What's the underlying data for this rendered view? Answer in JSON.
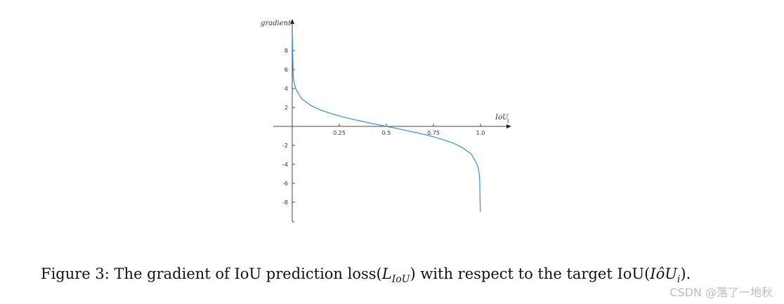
{
  "chart_data": {
    "type": "line",
    "xlabel": "IoU",
    "xlabel_subscript": "i",
    "ylabel": "gradient",
    "xlim": [
      0,
      1.0
    ],
    "ylim": [
      -9,
      9
    ],
    "xticks": [
      0.25,
      0.5,
      0.75,
      1.0
    ],
    "xtick_labels": [
      "0.25",
      "0.5",
      "0.75",
      "1.0"
    ],
    "yticks": [
      8,
      6,
      4,
      2,
      -2,
      -4,
      -6,
      -8
    ],
    "ytick_labels": [
      "8",
      "6",
      "4",
      "2",
      "-2",
      "-4",
      "-6",
      "-8"
    ],
    "grid": false,
    "series": [
      {
        "color": "#3a8fd0",
        "x": [
          0.001,
          0.005,
          0.01,
          0.02,
          0.05,
          0.1,
          0.15,
          0.2,
          0.25,
          0.3,
          0.35,
          0.4,
          0.45,
          0.5,
          0.55,
          0.6,
          0.65,
          0.7,
          0.75,
          0.8,
          0.85,
          0.9,
          0.95,
          0.98,
          0.99,
          0.995,
          0.999
        ],
        "y": [
          9.5,
          5.3,
          4.6,
          3.9,
          2.9,
          2.2,
          1.73,
          1.39,
          1.1,
          0.85,
          0.62,
          0.41,
          0.2,
          0.0,
          -0.2,
          -0.41,
          -0.62,
          -0.85,
          -1.1,
          -1.39,
          -1.73,
          -2.2,
          -2.9,
          -3.9,
          -4.6,
          -5.3,
          -9.0
        ]
      }
    ]
  },
  "caption": {
    "prefix": "Figure 3:",
    "text1": "The gradient of IoU prediction loss(",
    "loss_symbol": "L",
    "loss_sub": "IoU",
    "text2": ") with respect to the target IoU(",
    "target_symbol": "IôU",
    "target_sub": "i",
    "text3": ")."
  },
  "watermark": "CSDN @落了一地秋"
}
